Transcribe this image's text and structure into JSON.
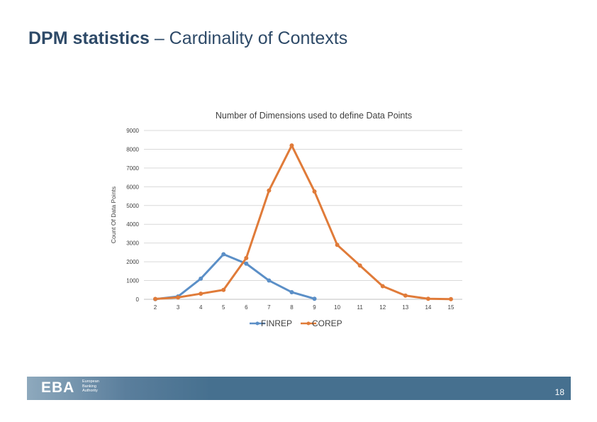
{
  "slide": {
    "title_bold": "DPM statistics",
    "title_rest": " – Cardinality of Contexts",
    "page_number": "18"
  },
  "footer": {
    "logo_text": "EBA",
    "logo_lines": [
      "European",
      "Banking",
      "Authority"
    ],
    "bar_color": "#46708f"
  },
  "chart_data": {
    "type": "line",
    "title": "Number of Dimensions used to define Data Points",
    "xlabel": "",
    "ylabel": "Count Of Data Points",
    "categories": [
      "2",
      "3",
      "4",
      "5",
      "6",
      "7",
      "8",
      "9",
      "10",
      "11",
      "12",
      "13",
      "14",
      "15"
    ],
    "ylim": [
      0,
      9000
    ],
    "yticks": [
      0,
      1000,
      2000,
      3000,
      4000,
      5000,
      6000,
      7000,
      8000,
      9000
    ],
    "grid": true,
    "legend_position": "bottom",
    "series": [
      {
        "name": "FINREP",
        "color": "#5b8fc7",
        "values": [
          10,
          150,
          1100,
          2400,
          1900,
          1000,
          380,
          30,
          null,
          null,
          null,
          null,
          null,
          null
        ]
      },
      {
        "name": "COREP",
        "color": "#e07b39",
        "values": [
          20,
          100,
          300,
          500,
          2200,
          5800,
          8200,
          5750,
          2900,
          1800,
          700,
          200,
          30,
          10
        ]
      }
    ]
  }
}
